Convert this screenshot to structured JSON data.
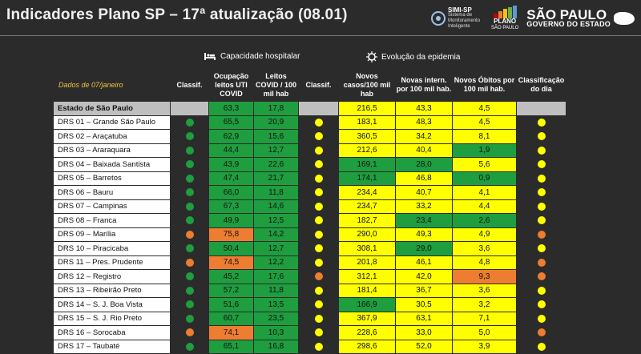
{
  "header": {
    "title": "Indicadores Plano SP – 17ª atualização (08.01)",
    "simi_label": "SIMI-SP",
    "simi_sub": "Sistema de Monitoramento Inteligente",
    "plano_label": "PLANO",
    "plano_sub": "SÃO PAULO",
    "sp_label": "SÃO PAULO",
    "sp_sub": "GOVERNO DO ESTADO"
  },
  "sections": {
    "hospital": "Capacidade hospitalar",
    "epidemia": "Evolução da epidemia"
  },
  "table": {
    "dados": "Dados de 07/janeiro",
    "headers": {
      "classif1": "Classif.",
      "ocupacao": "Ocupação leitos UTI COVID",
      "leitos": "Leitos COVID / 100 mil hab",
      "classif2": "Classif.",
      "casos": "Novos casos/100 mil hab",
      "intern": "Novas intern. por 100 mil hab.",
      "obitos": "Novos Óbitos por 100 mil hab.",
      "dia": "Classificação do dia"
    },
    "colors": {
      "green": "#1e9e3f",
      "orange": "#ed7d31",
      "yellow": "#ffff00"
    },
    "rows": [
      {
        "name": "Estado de São Paulo",
        "c1": "",
        "ocup": "63,3",
        "ocup_c": "g",
        "leit": "17,8",
        "leit_c": "g",
        "c2": "",
        "casos": "216,5",
        "casos_c": "y",
        "int": "43,3",
        "int_c": "y",
        "obt": "4,5",
        "obt_c": "y",
        "dia": "",
        "state": true
      },
      {
        "name": "DRS 01 – Grande São Paulo",
        "c1": "green",
        "ocup": "65,5",
        "ocup_c": "g",
        "leit": "20,9",
        "leit_c": "g",
        "c2": "yellow",
        "casos": "183,1",
        "casos_c": "y",
        "int": "48,3",
        "int_c": "y",
        "obt": "4,5",
        "obt_c": "y",
        "dia": "yellow"
      },
      {
        "name": "DRS 02 – Araçatuba",
        "c1": "green",
        "ocup": "62,9",
        "ocup_c": "g",
        "leit": "15,6",
        "leit_c": "g",
        "c2": "yellow",
        "casos": "360,5",
        "casos_c": "y",
        "int": "34,2",
        "int_c": "y",
        "obt": "8,1",
        "obt_c": "y",
        "dia": "yellow"
      },
      {
        "name": "DRS 03 – Araraquara",
        "c1": "green",
        "ocup": "44,4",
        "ocup_c": "g",
        "leit": "12,7",
        "leit_c": "g",
        "c2": "yellow",
        "casos": "212,6",
        "casos_c": "y",
        "int": "40,4",
        "int_c": "y",
        "obt": "1,9",
        "obt_c": "g",
        "dia": "yellow"
      },
      {
        "name": "DRS 04 – Baixada Santista",
        "c1": "green",
        "ocup": "43,9",
        "ocup_c": "g",
        "leit": "22,6",
        "leit_c": "g",
        "c2": "yellow",
        "casos": "169,1",
        "casos_c": "g",
        "int": "28,0",
        "int_c": "g",
        "obt": "5,6",
        "obt_c": "y",
        "dia": "yellow"
      },
      {
        "name": "DRS 05 – Barretos",
        "c1": "green",
        "ocup": "47,4",
        "ocup_c": "g",
        "leit": "21,7",
        "leit_c": "g",
        "c2": "yellow",
        "casos": "174,1",
        "casos_c": "g",
        "int": "46,8",
        "int_c": "y",
        "obt": "0,9",
        "obt_c": "g",
        "dia": "yellow"
      },
      {
        "name": "DRS 06 – Bauru",
        "c1": "green",
        "ocup": "66,0",
        "ocup_c": "g",
        "leit": "11,8",
        "leit_c": "g",
        "c2": "yellow",
        "casos": "234,4",
        "casos_c": "y",
        "int": "40,7",
        "int_c": "y",
        "obt": "4,1",
        "obt_c": "y",
        "dia": "yellow"
      },
      {
        "name": "DRS 07 – Campinas",
        "c1": "green",
        "ocup": "67,3",
        "ocup_c": "g",
        "leit": "14,6",
        "leit_c": "g",
        "c2": "yellow",
        "casos": "234,7",
        "casos_c": "y",
        "int": "33,2",
        "int_c": "y",
        "obt": "4,4",
        "obt_c": "y",
        "dia": "yellow"
      },
      {
        "name": "DRS 08 – Franca",
        "c1": "green",
        "ocup": "49,9",
        "ocup_c": "g",
        "leit": "12,5",
        "leit_c": "g",
        "c2": "yellow",
        "casos": "182,7",
        "casos_c": "y",
        "int": "23,4",
        "int_c": "g",
        "obt": "2,6",
        "obt_c": "g",
        "dia": "yellow"
      },
      {
        "name": "DRS 09 – Marília",
        "c1": "orange",
        "ocup": "75,8",
        "ocup_c": "o",
        "leit": "14,2",
        "leit_c": "g",
        "c2": "yellow",
        "casos": "290,0",
        "casos_c": "y",
        "int": "49,3",
        "int_c": "y",
        "obt": "4,9",
        "obt_c": "y",
        "dia": "orange"
      },
      {
        "name": "DRS 10 – Piracicaba",
        "c1": "green",
        "ocup": "50,4",
        "ocup_c": "g",
        "leit": "12,7",
        "leit_c": "g",
        "c2": "yellow",
        "casos": "308,1",
        "casos_c": "y",
        "int": "29,0",
        "int_c": "g",
        "obt": "3,6",
        "obt_c": "y",
        "dia": "yellow"
      },
      {
        "name": "DRS 11 – Pres. Prudente",
        "c1": "orange",
        "ocup": "74,5",
        "ocup_c": "o",
        "leit": "12,2",
        "leit_c": "g",
        "c2": "yellow",
        "casos": "201,8",
        "casos_c": "y",
        "int": "46,1",
        "int_c": "y",
        "obt": "4,8",
        "obt_c": "y",
        "dia": "orange"
      },
      {
        "name": "DRS 12 – Registro",
        "c1": "green",
        "ocup": "45,2",
        "ocup_c": "g",
        "leit": "17,6",
        "leit_c": "g",
        "c2": "orange",
        "casos": "312,1",
        "casos_c": "y",
        "int": "42,0",
        "int_c": "y",
        "obt": "9,3",
        "obt_c": "o",
        "dia": "orange"
      },
      {
        "name": "DRS 13 – Ribeirão Preto",
        "c1": "green",
        "ocup": "57,2",
        "ocup_c": "g",
        "leit": "11,8",
        "leit_c": "g",
        "c2": "yellow",
        "casos": "181,4",
        "casos_c": "y",
        "int": "36,7",
        "int_c": "y",
        "obt": "3,6",
        "obt_c": "y",
        "dia": "yellow"
      },
      {
        "name": "DRS 14 – S. J. Boa Vista",
        "c1": "green",
        "ocup": "51,6",
        "ocup_c": "g",
        "leit": "13,5",
        "leit_c": "g",
        "c2": "yellow",
        "casos": "166,9",
        "casos_c": "g",
        "int": "30,5",
        "int_c": "y",
        "obt": "3,2",
        "obt_c": "y",
        "dia": "yellow"
      },
      {
        "name": "DRS 15 – S. J. Rio Preto",
        "c1": "green",
        "ocup": "60,7",
        "ocup_c": "g",
        "leit": "23,5",
        "leit_c": "g",
        "c2": "yellow",
        "casos": "367,9",
        "casos_c": "y",
        "int": "63,1",
        "int_c": "y",
        "obt": "7,1",
        "obt_c": "y",
        "dia": "yellow"
      },
      {
        "name": "DRS 16 – Sorocaba",
        "c1": "orange",
        "ocup": "74,1",
        "ocup_c": "o",
        "leit": "10,3",
        "leit_c": "g",
        "c2": "yellow",
        "casos": "228,6",
        "casos_c": "y",
        "int": "33,0",
        "int_c": "y",
        "obt": "5,0",
        "obt_c": "y",
        "dia": "orange"
      },
      {
        "name": "DRS 17 – Taubaté",
        "c1": "green",
        "ocup": "65,1",
        "ocup_c": "g",
        "leit": "16,8",
        "leit_c": "g",
        "c2": "yellow",
        "casos": "298,6",
        "casos_c": "y",
        "int": "52,0",
        "int_c": "y",
        "obt": "3,9",
        "obt_c": "y",
        "dia": "yellow"
      }
    ]
  }
}
